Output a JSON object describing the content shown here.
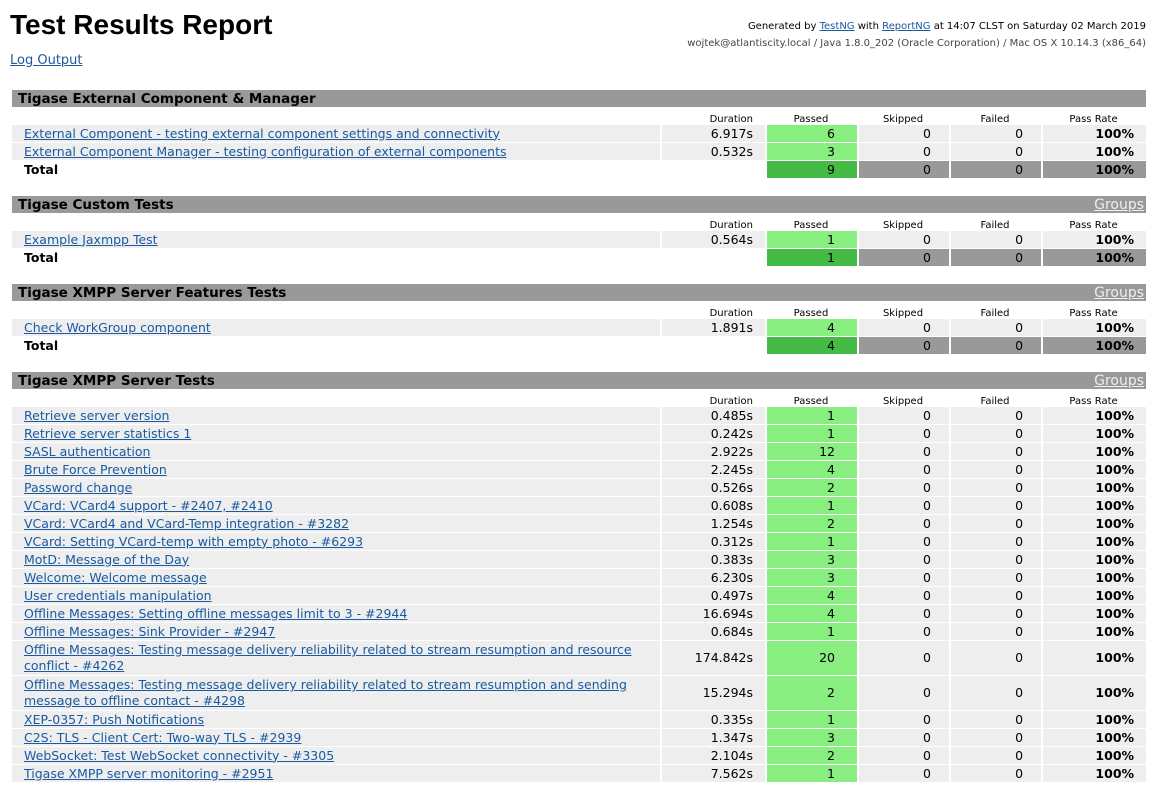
{
  "header": {
    "title": "Test Results Report",
    "log_output": "Log Output",
    "generated": {
      "prefix": "Generated by ",
      "testng": "TestNG",
      "with": " with ",
      "reportng": "ReportNG",
      "suffix": " at 14:07 CLST on Saturday 02 March 2019"
    },
    "environment": "wojtek@atlantiscity.local / Java 1.8.0_202 (Oracle Corporation) / Mac OS X 10.14.3 (x86_64)"
  },
  "columns": {
    "duration": "Duration",
    "passed": "Passed",
    "skipped": "Skipped",
    "failed": "Failed",
    "pass_rate": "Pass Rate"
  },
  "groups_label": "Groups",
  "total_label": "Total",
  "colors": {
    "header_bar": "#999999",
    "passed_cell": "#88ee80",
    "passed_total": "#44bb44",
    "row_bg": "#eeeeee",
    "link": "#1a5aa0"
  },
  "sections": [
    {
      "title": "Tigase External Component & Manager",
      "show_groups": false,
      "tests": [
        {
          "name": "External Component - testing external component settings and connectivity",
          "duration": "6.917s",
          "passed": "6",
          "skipped": "0",
          "failed": "0",
          "rate": "100%"
        },
        {
          "name": "External Component Manager - testing configuration of external components",
          "duration": "0.532s",
          "passed": "3",
          "skipped": "0",
          "failed": "0",
          "rate": "100%"
        }
      ],
      "total": {
        "passed": "9",
        "skipped": "0",
        "failed": "0",
        "rate": "100%"
      }
    },
    {
      "title": "Tigase Custom Tests",
      "show_groups": true,
      "tests": [
        {
          "name": "Example Jaxmpp Test",
          "duration": "0.564s",
          "passed": "1",
          "skipped": "0",
          "failed": "0",
          "rate": "100%"
        }
      ],
      "total": {
        "passed": "1",
        "skipped": "0",
        "failed": "0",
        "rate": "100%"
      }
    },
    {
      "title": "Tigase XMPP Server Features Tests",
      "show_groups": true,
      "tests": [
        {
          "name": "Check WorkGroup component",
          "duration": "1.891s",
          "passed": "4",
          "skipped": "0",
          "failed": "0",
          "rate": "100%"
        }
      ],
      "total": {
        "passed": "4",
        "skipped": "0",
        "failed": "0",
        "rate": "100%"
      }
    },
    {
      "title": "Tigase XMPP Server Tests",
      "show_groups": true,
      "tests": [
        {
          "name": "Retrieve server version",
          "duration": "0.485s",
          "passed": "1",
          "skipped": "0",
          "failed": "0",
          "rate": "100%"
        },
        {
          "name": "Retrieve server statistics 1",
          "duration": "0.242s",
          "passed": "1",
          "skipped": "0",
          "failed": "0",
          "rate": "100%"
        },
        {
          "name": "SASL authentication",
          "duration": "2.922s",
          "passed": "12",
          "skipped": "0",
          "failed": "0",
          "rate": "100%"
        },
        {
          "name": "Brute Force Prevention",
          "duration": "2.245s",
          "passed": "4",
          "skipped": "0",
          "failed": "0",
          "rate": "100%"
        },
        {
          "name": "Password change",
          "duration": "0.526s",
          "passed": "2",
          "skipped": "0",
          "failed": "0",
          "rate": "100%"
        },
        {
          "name": "VCard: VCard4 support - #2407, #2410",
          "duration": "0.608s",
          "passed": "1",
          "skipped": "0",
          "failed": "0",
          "rate": "100%"
        },
        {
          "name": "VCard: VCard4 and VCard-Temp integration - #3282",
          "duration": "1.254s",
          "passed": "2",
          "skipped": "0",
          "failed": "0",
          "rate": "100%"
        },
        {
          "name": "VCard: Setting VCard-temp with empty photo - #6293",
          "duration": "0.312s",
          "passed": "1",
          "skipped": "0",
          "failed": "0",
          "rate": "100%"
        },
        {
          "name": "MotD: Message of the Day",
          "duration": "0.383s",
          "passed": "3",
          "skipped": "0",
          "failed": "0",
          "rate": "100%"
        },
        {
          "name": "Welcome: Welcome message",
          "duration": "6.230s",
          "passed": "3",
          "skipped": "0",
          "failed": "0",
          "rate": "100%"
        },
        {
          "name": "User credentials manipulation",
          "duration": "0.497s",
          "passed": "4",
          "skipped": "0",
          "failed": "0",
          "rate": "100%"
        },
        {
          "name": "Offline Messages: Setting offline messages limit to 3 - #2944",
          "duration": "16.694s",
          "passed": "4",
          "skipped": "0",
          "failed": "0",
          "rate": "100%"
        },
        {
          "name": "Offline Messages: Sink Provider - #2947",
          "duration": "0.684s",
          "passed": "1",
          "skipped": "0",
          "failed": "0",
          "rate": "100%"
        },
        {
          "name": "Offline Messages: Testing message delivery reliability related to stream resumption and resource conflict - #4262",
          "duration": "174.842s",
          "passed": "20",
          "skipped": "0",
          "failed": "0",
          "rate": "100%",
          "tall": true
        },
        {
          "name": "Offline Messages: Testing message delivery reliability related to stream resumption and sending message to offline contact - #4298",
          "duration": "15.294s",
          "passed": "2",
          "skipped": "0",
          "failed": "0",
          "rate": "100%",
          "tall": true
        },
        {
          "name": "XEP-0357: Push Notifications",
          "duration": "0.335s",
          "passed": "1",
          "skipped": "0",
          "failed": "0",
          "rate": "100%"
        },
        {
          "name": "C2S: TLS - Client Cert: Two-way TLS - #2939",
          "duration": "1.347s",
          "passed": "3",
          "skipped": "0",
          "failed": "0",
          "rate": "100%"
        },
        {
          "name": "WebSocket: Test WebSocket connectivity - #3305",
          "duration": "2.104s",
          "passed": "2",
          "skipped": "0",
          "failed": "0",
          "rate": "100%"
        },
        {
          "name": "Tigase XMPP server monitoring - #2951",
          "duration": "7.562s",
          "passed": "1",
          "skipped": "0",
          "failed": "0",
          "rate": "100%"
        }
      ]
    }
  ]
}
